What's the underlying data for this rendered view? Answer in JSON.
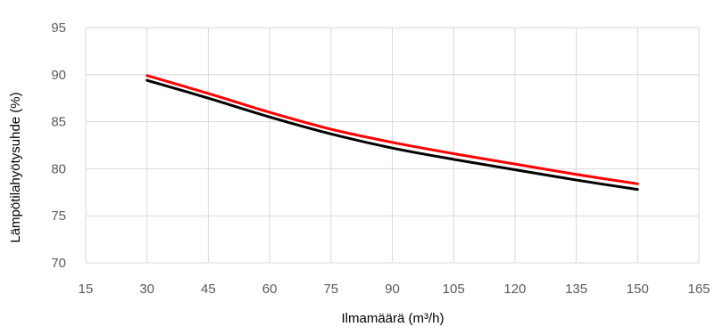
{
  "chart_data": {
    "type": "line",
    "title": "",
    "xlabel": "Ilmamäärä  (m³/h)",
    "ylabel": "Lämpötilahyötysuhde (%)",
    "xlim": [
      15,
      165
    ],
    "ylim": [
      70,
      95
    ],
    "x_ticks": [
      "15",
      "30",
      "45",
      "60",
      "75",
      "90",
      "105",
      "120",
      "135",
      "150",
      "165"
    ],
    "y_ticks": [
      "70",
      "75",
      "80",
      "85",
      "90",
      "95"
    ],
    "grid": true,
    "legend": "none",
    "series": [
      {
        "color": "#ff0000",
        "x": [
          30,
          45,
          60,
          75,
          90,
          105,
          120,
          135,
          150
        ],
        "y": [
          89.9,
          88.0,
          86.0,
          84.2,
          82.8,
          81.6,
          80.5,
          79.4,
          78.4
        ]
      },
      {
        "color": "#000000",
        "x": [
          30,
          45,
          60,
          75,
          90,
          105,
          120,
          135,
          150
        ],
        "y": [
          89.4,
          87.5,
          85.5,
          83.7,
          82.2,
          81.0,
          79.9,
          78.8,
          77.8
        ]
      }
    ]
  }
}
